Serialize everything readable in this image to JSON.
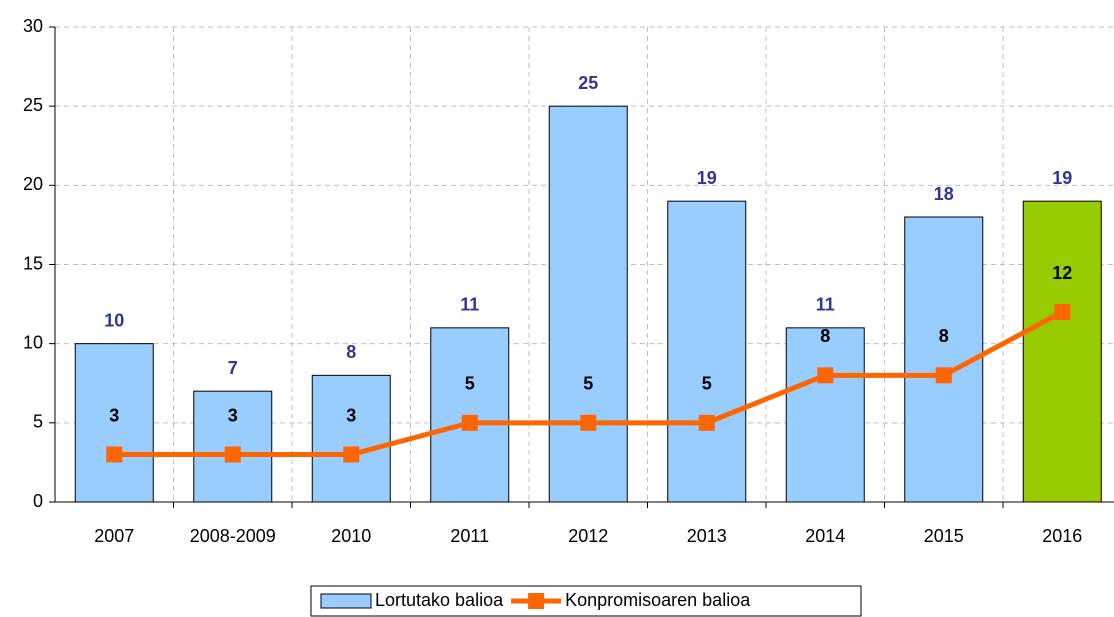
{
  "chart_data": {
    "type": "bar_line",
    "categories": [
      "2007",
      "2008-2009",
      "2010",
      "2011",
      "2012",
      "2013",
      "2014",
      "2015",
      "2016"
    ],
    "series": [
      {
        "name": "Lortutako balioa",
        "type": "bar",
        "color": "#99ccff",
        "colors": [
          "#99ccff",
          "#99ccff",
          "#99ccff",
          "#99ccff",
          "#99ccff",
          "#99ccff",
          "#99ccff",
          "#99ccff",
          "#99cc00"
        ],
        "values": [
          10,
          7,
          8,
          11,
          25,
          19,
          11,
          18,
          19
        ]
      },
      {
        "name": "Konpromisoaren balioa",
        "type": "line",
        "color": "#ff6600",
        "values": [
          3,
          3,
          3,
          5,
          5,
          5,
          8,
          8,
          12
        ]
      }
    ],
    "ylim": [
      0,
      30
    ],
    "yticks": [
      0,
      5,
      10,
      15,
      20,
      25,
      30
    ],
    "grid": true,
    "legend": "bottom"
  }
}
